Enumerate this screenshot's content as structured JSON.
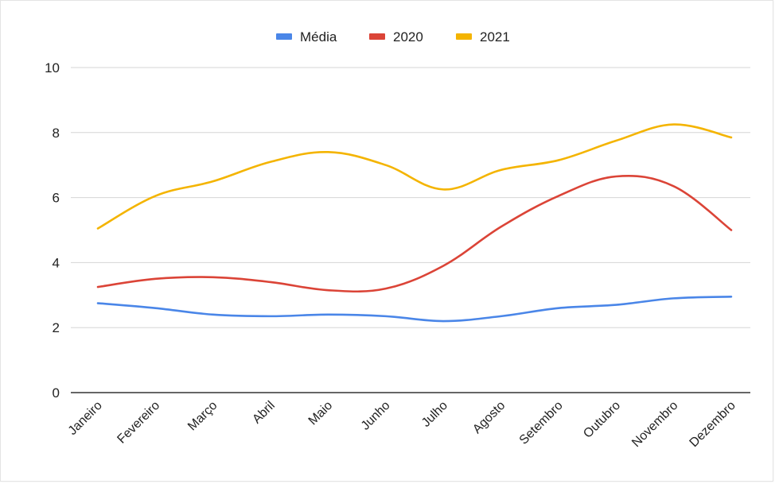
{
  "chart_data": {
    "type": "line",
    "categories": [
      "Janeiro",
      "Fevereiro",
      "Março",
      "Abril",
      "Maio",
      "Junho",
      "Julho",
      "Agosto",
      "Setembro",
      "Outubro",
      "Novembro",
      "Dezembro"
    ],
    "series": [
      {
        "name": "Média",
        "color": "#4a86e8",
        "values": [
          2.75,
          2.6,
          2.4,
          2.35,
          2.4,
          2.35,
          2.2,
          2.35,
          2.6,
          2.7,
          2.9,
          2.95
        ]
      },
      {
        "name": "2020",
        "color": "#db4437",
        "values": [
          3.25,
          3.5,
          3.55,
          3.4,
          3.15,
          3.2,
          3.9,
          5.1,
          6.05,
          6.65,
          6.35,
          5.0
        ]
      },
      {
        "name": "2021",
        "color": "#f4b400",
        "values": [
          5.05,
          6.05,
          6.5,
          7.1,
          7.4,
          7.0,
          6.25,
          6.85,
          7.15,
          7.75,
          8.25,
          7.85
        ]
      }
    ],
    "title": "",
    "xlabel": "",
    "ylabel": "",
    "ylim": [
      0,
      10
    ],
    "yticks": [
      "0",
      "2",
      "4",
      "6",
      "8",
      "10"
    ],
    "grid": true,
    "legend_position": "top"
  }
}
